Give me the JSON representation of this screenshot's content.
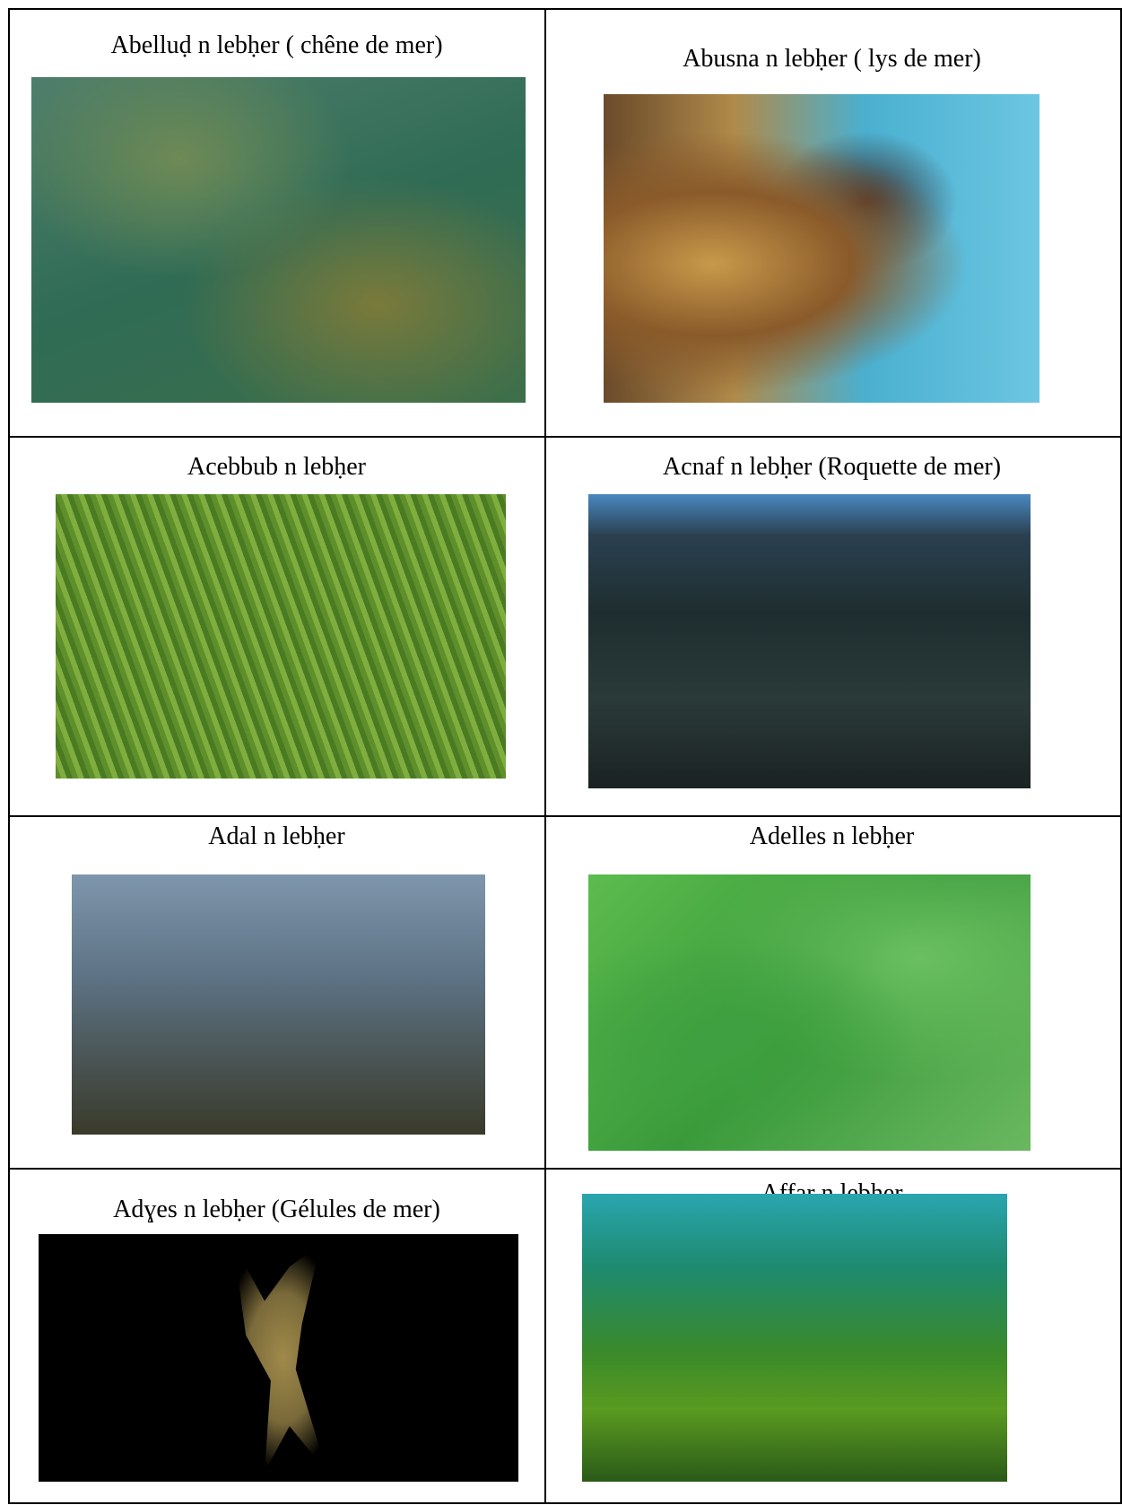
{
  "table": {
    "rows": [
      [
        "Abelluḍ n lebḥer ( chêne de mer)",
        "Abusna n lebḥer ( lys de mer)"
      ],
      [
        "Acebbub n lebḥer",
        "Acnaf n lebḥer (Roquette de mer)"
      ],
      [
        "Adal n lebḥer",
        "Adelles n lebḥer"
      ],
      [
        "Adɣes n lebḥer (Gélules de mer)",
        "Affar n lebḥer"
      ]
    ]
  }
}
